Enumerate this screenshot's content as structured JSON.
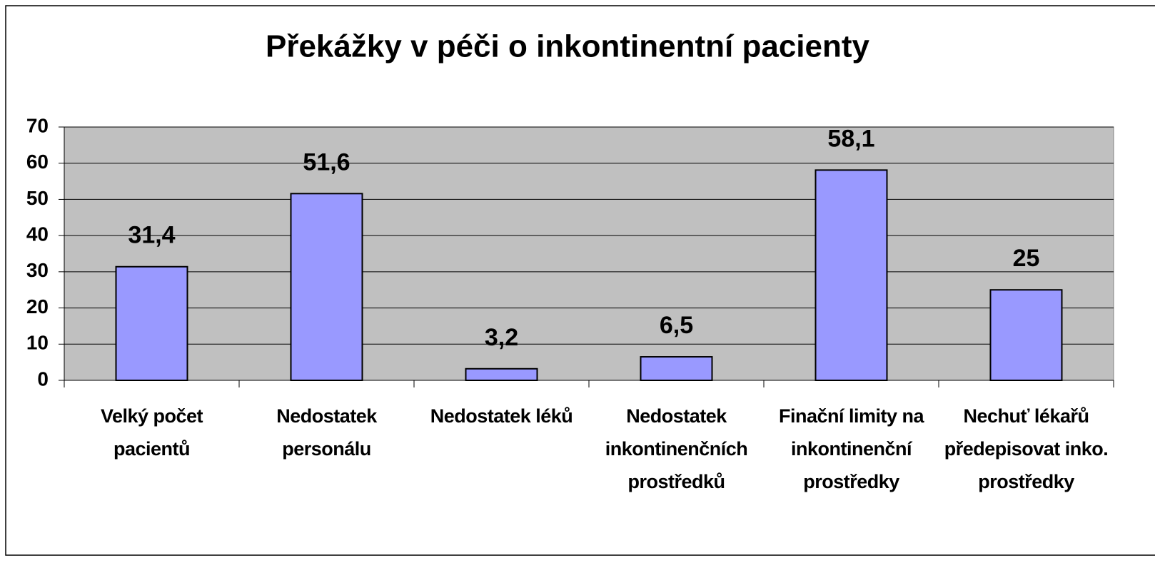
{
  "chart_data": {
    "type": "bar",
    "title": "Překážky v péči o inkontinentní pacienty",
    "categories": [
      "Velký počet pacientů",
      "Nedostatek personálu",
      "Nedostatek léků",
      "Nedostatek inkontinenčních prostředků",
      "Finační limity na inkontinenční prostředky",
      "Nechuť lékařů předepisovat inko. prostředky"
    ],
    "values": [
      31.4,
      51.6,
      3.2,
      6.5,
      58.1,
      25
    ],
    "value_labels": [
      "31,4",
      "51,6",
      "3,2",
      "6,5",
      "58,1",
      "25"
    ],
    "color": "#9999ff",
    "plot_background": "#c0c0c0",
    "ylim": [
      0,
      70
    ],
    "yticks": [
      0,
      10,
      20,
      30,
      40,
      50,
      60,
      70
    ],
    "grid": true
  }
}
